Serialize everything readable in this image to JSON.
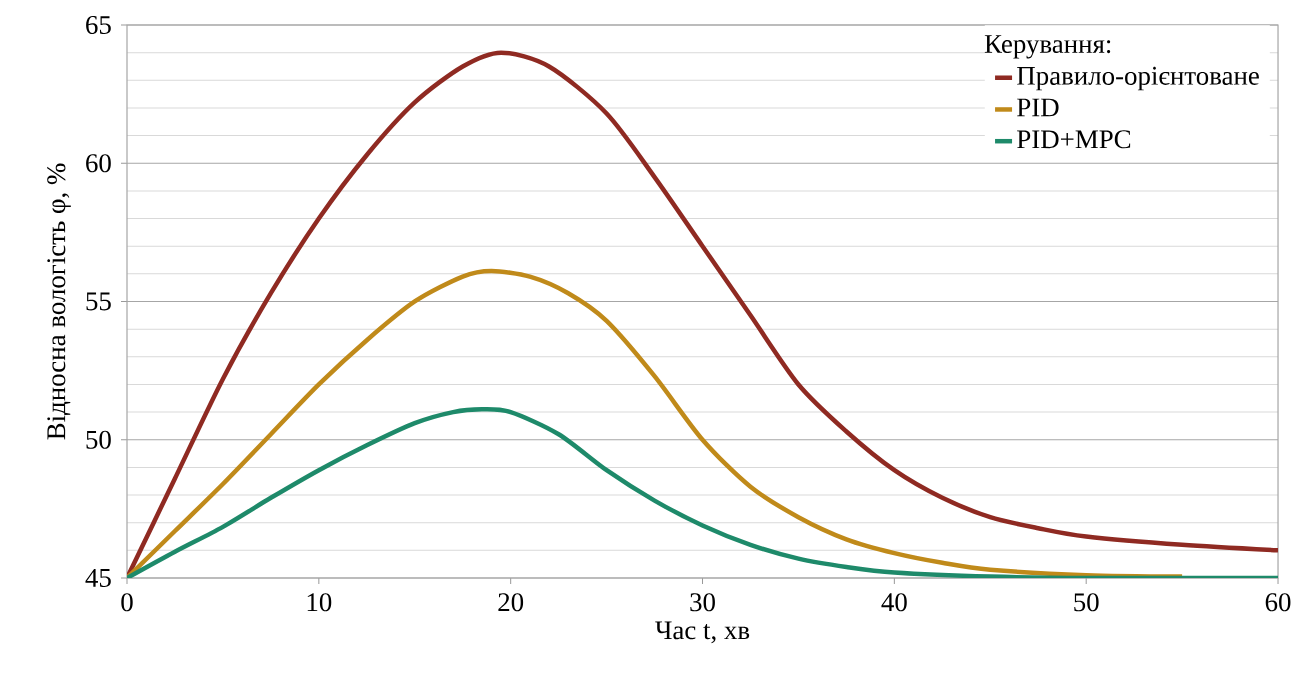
{
  "chart_data": {
    "type": "line",
    "xlabel": "Час t, хв",
    "ylabel": "Відносна вологість φ, %",
    "legend_title": "Керування:",
    "xlim": [
      0,
      60
    ],
    "xticks": [
      0,
      10,
      20,
      30,
      40,
      50,
      60
    ],
    "ylim": [
      45,
      65
    ],
    "yticks": [
      45,
      50,
      55,
      60,
      65
    ],
    "grid": "y",
    "legend": "top right",
    "marker": "none",
    "line_style": "solid",
    "series": [
      {
        "name": "Правило-орієнтоване",
        "color": "#8f2a22",
        "x": [
          0,
          2.5,
          5,
          7.5,
          10,
          12.5,
          15,
          17.5,
          19.5,
          22,
          25,
          27.5,
          30,
          32.5,
          35,
          37.5,
          40,
          42.5,
          45,
          47.5,
          50,
          55,
          60
        ],
        "values": [
          45,
          48.6,
          52.2,
          55.3,
          58.0,
          60.3,
          62.2,
          63.5,
          64.0,
          63.5,
          61.8,
          59.5,
          57.0,
          54.5,
          52.0,
          50.3,
          48.9,
          47.9,
          47.2,
          46.8,
          46.5,
          46.2,
          46.0
        ]
      },
      {
        "name": "PID",
        "color": "#c08a1a",
        "x": [
          0,
          2.5,
          5,
          7.5,
          10,
          12.5,
          15,
          17.5,
          19,
          21,
          23,
          25,
          27.5,
          30,
          32.5,
          35,
          37.5,
          40,
          42.5,
          45,
          50,
          55
        ],
        "values": [
          45,
          46.7,
          48.4,
          50.2,
          52.0,
          53.6,
          55.0,
          55.9,
          56.1,
          55.9,
          55.3,
          54.3,
          52.3,
          50.0,
          48.3,
          47.2,
          46.4,
          45.9,
          45.55,
          45.3,
          45.1,
          45.05
        ]
      },
      {
        "name": "PID+MPC",
        "color": "#1e8a6a",
        "x": [
          0,
          2.5,
          5,
          7.5,
          10,
          12.5,
          15,
          17,
          18.5,
          20,
          22.5,
          25,
          27.5,
          30,
          32.5,
          35,
          37.5,
          40,
          45,
          50,
          60
        ],
        "values": [
          45,
          45.95,
          46.85,
          47.9,
          48.9,
          49.8,
          50.6,
          51.0,
          51.1,
          51.0,
          50.2,
          48.9,
          47.8,
          46.9,
          46.2,
          45.7,
          45.4,
          45.2,
          45.05,
          45.0,
          45.0
        ]
      }
    ]
  }
}
